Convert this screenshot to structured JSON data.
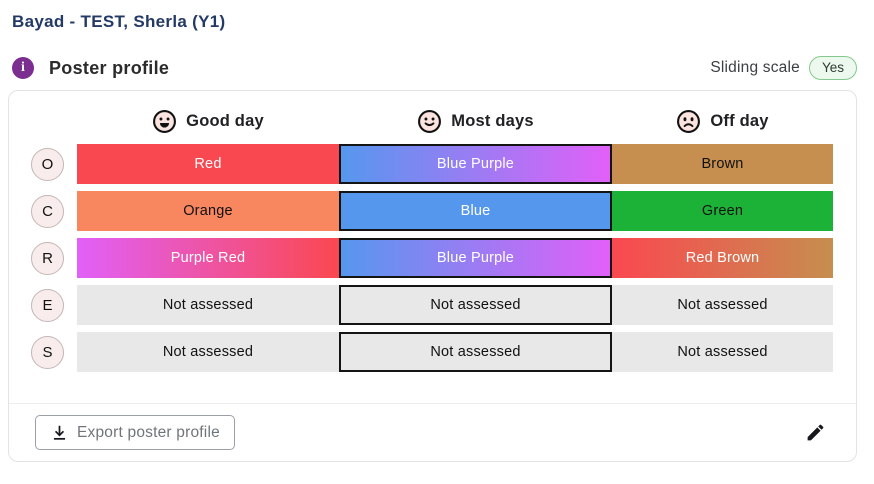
{
  "page_title": "Bayad - TEST, Sherla (Y1)",
  "section": {
    "title": "Poster profile",
    "sliding_scale": {
      "label": "Sliding scale",
      "value": "Yes"
    }
  },
  "icons": {
    "info": "info-icon",
    "good_day": "happy-face-icon",
    "most_days": "smile-face-icon",
    "off_day": "sad-face-icon",
    "export": "download-icon",
    "edit": "pencil-icon"
  },
  "colors": {
    "title_navy": "#243a66",
    "info_purple": "#7b2e8f",
    "badge_green_border": "#84c98b",
    "badge_green_bg": "#edf8ee",
    "red": "#fa4850",
    "blue": "#5697ee",
    "purple": "#e160f8",
    "brown": "#c68e4f",
    "orange": "#f8865f",
    "green": "#1cb238",
    "not_assessed_gray": "#e8e8e8",
    "outline_black": "#141414"
  },
  "profile_table": {
    "columns": [
      {
        "label": "Good day"
      },
      {
        "label": "Most days"
      },
      {
        "label": "Off day"
      }
    ],
    "rows": [
      {
        "letter": "O",
        "cells": [
          {
            "text": "Red",
            "colors": [
              "#fa4850"
            ],
            "fg": "#ffffff",
            "outlined": false
          },
          {
            "text": "Blue Purple",
            "colors": [
              "#5697ee",
              "#e160f8"
            ],
            "fg": "#ffffff",
            "outlined": true
          },
          {
            "text": "Brown",
            "colors": [
              "#c68e4f"
            ],
            "fg": "#111111",
            "outlined": false
          }
        ]
      },
      {
        "letter": "C",
        "cells": [
          {
            "text": "Orange",
            "colors": [
              "#f8865f"
            ],
            "fg": "#111111",
            "outlined": false
          },
          {
            "text": "Blue",
            "colors": [
              "#5697ee"
            ],
            "fg": "#ffffff",
            "outlined": true
          },
          {
            "text": "Green",
            "colors": [
              "#1cb238"
            ],
            "fg": "#111111",
            "outlined": false
          }
        ]
      },
      {
        "letter": "R",
        "cells": [
          {
            "text": "Purple Red",
            "colors": [
              "#e160f8",
              "#fa4850"
            ],
            "fg": "#ffffff",
            "outlined": false
          },
          {
            "text": "Blue Purple",
            "colors": [
              "#5697ee",
              "#e160f8"
            ],
            "fg": "#ffffff",
            "outlined": true
          },
          {
            "text": "Red Brown",
            "colors": [
              "#fa4850",
              "#c68e4f"
            ],
            "fg": "#ffffff",
            "outlined": false
          }
        ]
      },
      {
        "letter": "E",
        "cells": [
          {
            "text": "Not assessed",
            "colors": [
              "#e8e8e8"
            ],
            "fg": "#111111",
            "outlined": false
          },
          {
            "text": "Not assessed",
            "colors": [
              "#e8e8e8"
            ],
            "fg": "#111111",
            "outlined": true
          },
          {
            "text": "Not assessed",
            "colors": [
              "#e8e8e8"
            ],
            "fg": "#111111",
            "outlined": false
          }
        ]
      },
      {
        "letter": "S",
        "cells": [
          {
            "text": "Not assessed",
            "colors": [
              "#e8e8e8"
            ],
            "fg": "#111111",
            "outlined": false
          },
          {
            "text": "Not assessed",
            "colors": [
              "#e8e8e8"
            ],
            "fg": "#111111",
            "outlined": true
          },
          {
            "text": "Not assessed",
            "colors": [
              "#e8e8e8"
            ],
            "fg": "#111111",
            "outlined": false
          }
        ]
      }
    ]
  },
  "footer": {
    "export_label": "Export poster profile"
  }
}
